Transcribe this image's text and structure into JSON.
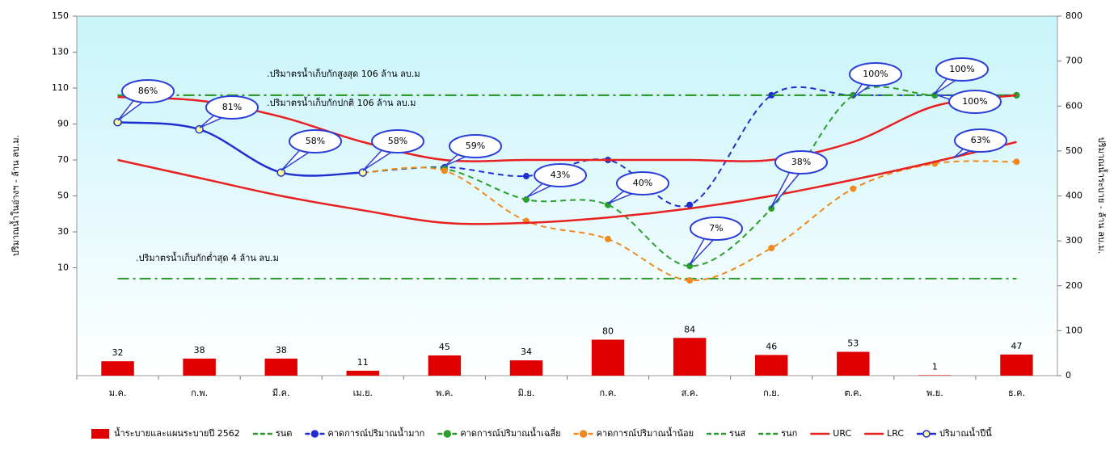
{
  "chart_data": {
    "type": "combo",
    "categories": [
      "ม.ค.",
      "ก.พ.",
      "มี.ค.",
      "เม.ย.",
      "พ.ค.",
      "มิ.ย.",
      "ก.ค.",
      "ส.ค.",
      "ก.ย.",
      "ต.ค.",
      "พ.ย.",
      "ธ.ค."
    ],
    "y_label": "ปริมาณน้ำในอ่างฯ - ล้าน ลบ.ม.",
    "y2_label": "ปริมาณน้ำระบาย - ล้าน ลบ.ม.",
    "ylim": [
      -50,
      150
    ],
    "yticks": [
      10,
      30,
      50,
      70,
      90,
      110,
      130,
      150
    ],
    "y2lim": [
      0,
      800
    ],
    "y2ticks": [
      0,
      100,
      200,
      300,
      400,
      500,
      600,
      700,
      800
    ],
    "series": [
      {
        "name": "น้ำระบายและแผนระบายปี 2562",
        "type": "bar",
        "axis": "y2",
        "color": "#e00000",
        "values": [
          32,
          38,
          38,
          11,
          45,
          34,
          80,
          84,
          46,
          53,
          1,
          47
        ]
      },
      {
        "name": "รนต",
        "type": "line",
        "color": "#2a9a2a",
        "style": "dashdot",
        "values": [
          4,
          4,
          4,
          4,
          4,
          4,
          4,
          4,
          4,
          4,
          4,
          4
        ]
      },
      {
        "name": "คาดการณ์ปริมาณน้ำมาก",
        "type": "line",
        "color": "#1f2fd0",
        "style": "dash",
        "marker": "dot",
        "values": [
          null,
          null,
          null,
          63,
          66,
          61,
          70,
          45,
          106,
          106,
          106,
          106
        ]
      },
      {
        "name": "คาดการณ์ปริมาณน้ำเฉลี่ย",
        "type": "line",
        "color": "#2aa02a",
        "style": "dash",
        "marker": "dot",
        "values": [
          null,
          null,
          null,
          63,
          65,
          48,
          45,
          11,
          43,
          106,
          106,
          106
        ]
      },
      {
        "name": "คาดการณ์ปริมาณน้ำน้อย",
        "type": "line",
        "color": "#f08a1c",
        "style": "dash",
        "marker": "dot",
        "values": [
          null,
          null,
          null,
          63,
          64,
          36,
          26,
          3,
          21,
          54,
          68,
          69
        ]
      },
      {
        "name": "รนส",
        "type": "line",
        "color": "#2a9a2a",
        "style": "dashdot",
        "values": [
          106,
          106,
          106,
          106,
          106,
          106,
          106,
          106,
          106,
          106,
          106,
          106
        ]
      },
      {
        "name": "รนก",
        "type": "line",
        "color": "#2a9a2a",
        "style": "dashdot",
        "values": [
          106,
          106,
          106,
          106,
          106,
          106,
          106,
          106,
          106,
          106,
          106,
          106
        ]
      },
      {
        "name": "URC",
        "type": "line",
        "color": "#e82020",
        "style": "solid",
        "values": [
          105,
          103,
          94,
          80,
          70,
          70,
          70,
          70,
          70,
          80,
          100,
          106
        ]
      },
      {
        "name": "LRC",
        "type": "line",
        "color": "#e82020",
        "style": "solid",
        "values": [
          70,
          60,
          50,
          42,
          35,
          35,
          38,
          43,
          50,
          59,
          69,
          80
        ]
      },
      {
        "name": "ปริมาณน้ำปีนี้",
        "type": "line",
        "color": "#1f2fd0",
        "style": "solid",
        "marker": "ring",
        "marker_fill": "#ffff99",
        "values": [
          91,
          87,
          63,
          63,
          null,
          null,
          null,
          null,
          null,
          null,
          null,
          null
        ]
      }
    ],
    "annotations": [
      ".ปริมาตรน้ำเก็บกักสูงสุด 106 ล้าน ลบ.ม",
      ".ปริมาตรน้ำเก็บกักปกติ 106 ล้าน ลบ.ม",
      ".ปริมาตรน้ำเก็บกักต่ำสุด 4 ล้าน ลบ.ม"
    ],
    "callouts": [
      "86%",
      "81%",
      "58%",
      "58%",
      "59%",
      "43%",
      "40%",
      "7%",
      "38%",
      "100%",
      "100%",
      "100%",
      "63%"
    ]
  }
}
